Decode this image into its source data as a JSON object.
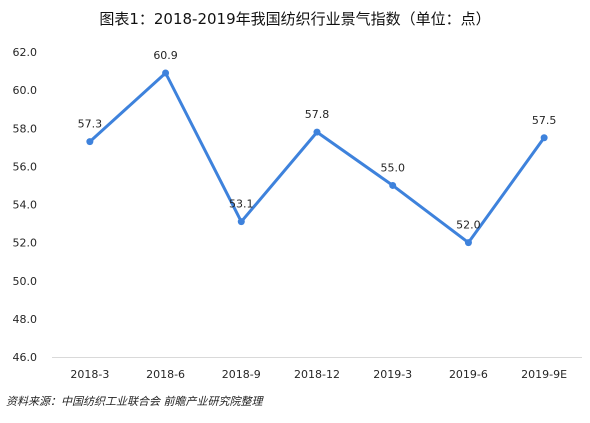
{
  "chart_data": {
    "type": "line",
    "title": "图表1：2018-2019年我国纺织行业景气指数（单位：点）",
    "categories": [
      "2018-3",
      "2018-6",
      "2018-9",
      "2018-12",
      "2019-3",
      "2019-6",
      "2019-9E"
    ],
    "series": [
      {
        "values": [
          57.3,
          60.9,
          53.1,
          57.8,
          55.0,
          52.0,
          57.5
        ],
        "labels": [
          "57.3",
          "60.9",
          "53.1",
          "57.8",
          "55.0",
          "52.0",
          "57.5"
        ],
        "color": "#3E82DC"
      }
    ],
    "ylim": [
      46.0,
      62.0
    ],
    "yticks": [
      "46.0",
      "48.0",
      "50.0",
      "52.0",
      "54.0",
      "56.0",
      "58.0",
      "60.0",
      "62.0"
    ],
    "grid": false,
    "legend": "none"
  },
  "source_note": "资料来源：中国纺织工业联合会 前瞻产业研究院整理"
}
